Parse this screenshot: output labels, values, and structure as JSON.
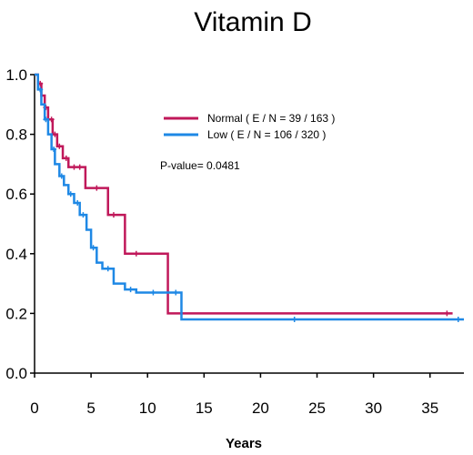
{
  "chart_data": {
    "type": "line",
    "title": "Vitamin D",
    "xlabel": "Years",
    "ylabel": "",
    "xlim": [
      0,
      38
    ],
    "ylim": [
      0,
      1.0
    ],
    "xticks": [
      0,
      5,
      10,
      15,
      20,
      25,
      30,
      35
    ],
    "yticks": [
      0.0,
      0.2,
      0.4,
      0.6,
      0.8,
      1.0
    ],
    "ytick_labels": [
      "0.0",
      "0.2",
      "0.4",
      "0.6",
      "0.8",
      "1.0"
    ],
    "grid": false,
    "legend_position": "top-right",
    "annotation": "P-value= 0.0481",
    "series": [
      {
        "name": "Normal",
        "legend_label": "Normal  ( E / N = 39 / 163 )",
        "color": "#c0185a",
        "steps": [
          [
            0,
            1.0
          ],
          [
            0.3,
            0.97
          ],
          [
            0.6,
            0.93
          ],
          [
            0.9,
            0.89
          ],
          [
            1.2,
            0.85
          ],
          [
            1.6,
            0.8
          ],
          [
            2.0,
            0.76
          ],
          [
            2.5,
            0.72
          ],
          [
            3.0,
            0.69
          ],
          [
            4.5,
            0.62
          ],
          [
            6.5,
            0.53
          ],
          [
            8.0,
            0.4
          ],
          [
            11.8,
            0.2
          ],
          [
            37,
            0.2
          ]
        ],
        "censor_x": [
          0.5,
          1.0,
          1.5,
          1.8,
          2.2,
          2.8,
          3.5,
          4.0,
          5.5,
          7.0,
          9.0,
          36.5
        ]
      },
      {
        "name": "Low",
        "legend_label": "Low  ( E / N = 106 / 320 )",
        "color": "#1e88e5",
        "steps": [
          [
            0,
            1.0
          ],
          [
            0.3,
            0.95
          ],
          [
            0.6,
            0.9
          ],
          [
            0.9,
            0.85
          ],
          [
            1.2,
            0.8
          ],
          [
            1.5,
            0.75
          ],
          [
            1.8,
            0.7
          ],
          [
            2.2,
            0.66
          ],
          [
            2.6,
            0.63
          ],
          [
            3.0,
            0.6
          ],
          [
            3.5,
            0.57
          ],
          [
            4.0,
            0.53
          ],
          [
            4.6,
            0.48
          ],
          [
            5.0,
            0.42
          ],
          [
            5.5,
            0.37
          ],
          [
            6.0,
            0.35
          ],
          [
            7.0,
            0.3
          ],
          [
            8.0,
            0.28
          ],
          [
            9.0,
            0.27
          ],
          [
            13.0,
            0.18
          ],
          [
            38,
            0.18
          ]
        ],
        "censor_x": [
          0.5,
          1.0,
          1.7,
          2.4,
          3.2,
          3.8,
          4.3,
          5.2,
          6.5,
          8.5,
          10.5,
          12.5,
          23.0,
          37.5
        ]
      }
    ]
  }
}
